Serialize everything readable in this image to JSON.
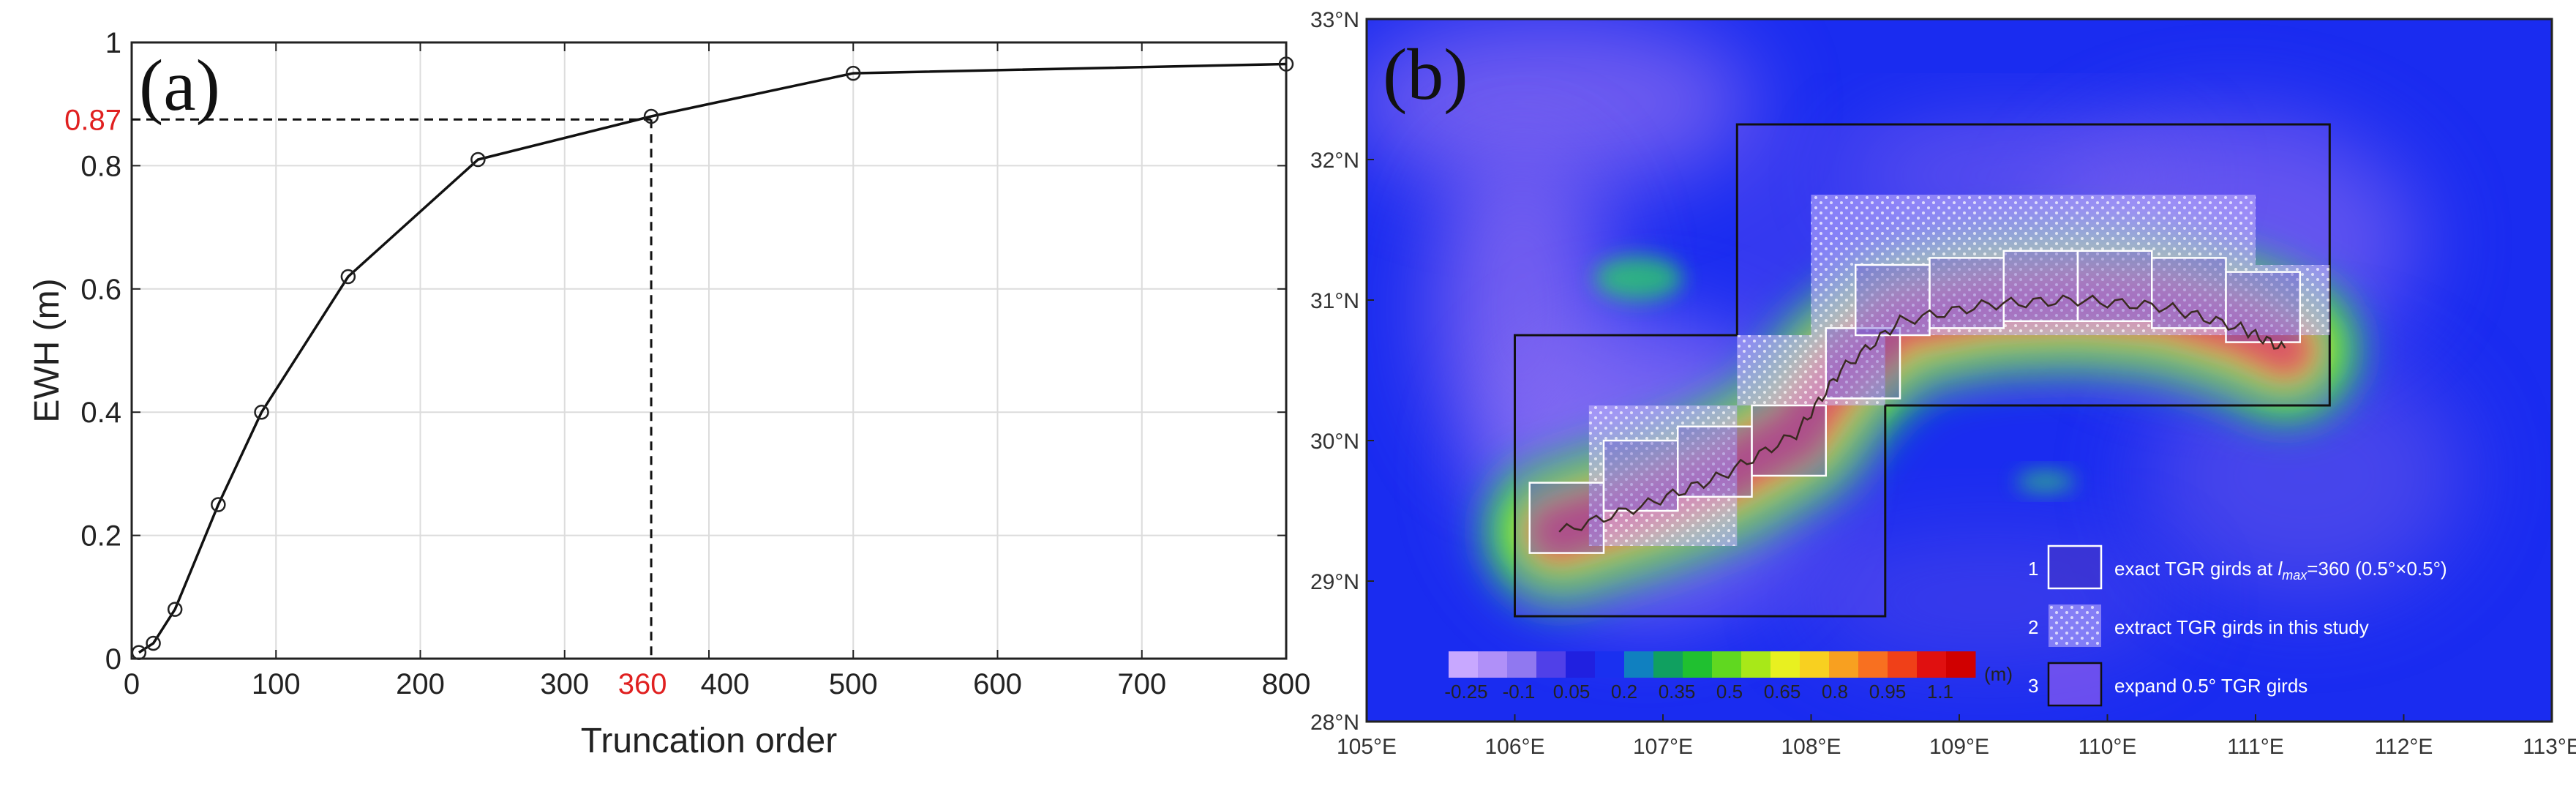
{
  "chart_data": [
    {
      "type": "line",
      "panel_label": "(a)",
      "xlabel": "Truncation order",
      "ylabel": "EWH (m)",
      "xlim": [
        0,
        800
      ],
      "ylim": [
        0,
        1
      ],
      "xticks": [
        "0",
        "100",
        "200",
        "300",
        "400",
        "500",
        "600",
        "700",
        "800"
      ],
      "yticks": [
        "0",
        "0.2",
        "0.4",
        "0.6",
        "0.8",
        "1"
      ],
      "grid": true,
      "series": [
        {
          "name": "EWH",
          "x": [
            5,
            15,
            30,
            60,
            90,
            150,
            240,
            360,
            500,
            800
          ],
          "y": [
            0.01,
            0.025,
            0.08,
            0.25,
            0.4,
            0.62,
            0.81,
            0.88,
            0.95,
            0.965
          ]
        }
      ],
      "highlight": {
        "x_label": "360",
        "y_label": "0.87",
        "x": 360,
        "y": 0.875,
        "color": "#e02020"
      }
    },
    {
      "type": "heatmap",
      "panel_label": "(b)",
      "lon_range": [
        105,
        113
      ],
      "lat_range": [
        28,
        33
      ],
      "xticks": [
        "105°E",
        "106°E",
        "107°E",
        "108°E",
        "109°E",
        "110°E",
        "111°E",
        "112°E",
        "113°E"
      ],
      "yticks": [
        "28°N",
        "29°N",
        "30°N",
        "31°N",
        "32°N",
        "33°N"
      ],
      "colorbar": {
        "labels": [
          "-0.25",
          "-0.1",
          "0.05",
          "0.2",
          "0.35",
          "0.5",
          "0.65",
          "0.8",
          "0.95",
          "1.1"
        ],
        "unit": "(m)",
        "min": -0.3,
        "max": 1.2
      },
      "legend": [
        {
          "number": "1",
          "text_pre": "exact TGR girds at ",
          "lmax_l": "l",
          "lmax_sub": "max",
          "text_post": "=360 (0.5°×0.5°)"
        },
        {
          "number": "2",
          "text": "extract TGR girds in this study"
        },
        {
          "number": "3",
          "text": "expand 0.5° TGR girds"
        }
      ],
      "expanded_region": {
        "lon_lat_outline": [
          [
            106,
            28.75
          ],
          [
            106,
            30.75
          ],
          [
            107.5,
            30.75
          ],
          [
            107.5,
            32.25
          ],
          [
            111.5,
            32.25
          ],
          [
            111.5,
            30.25
          ],
          [
            108.5,
            30.25
          ],
          [
            108.5,
            28.75
          ]
        ]
      },
      "extract_region": {
        "lon_lat_outline": [
          [
            106.5,
            29.25
          ],
          [
            106.5,
            30.25
          ],
          [
            107.5,
            30.25
          ],
          [
            107.5,
            30.75
          ],
          [
            108,
            30.75
          ],
          [
            108,
            31.75
          ],
          [
            111,
            31.75
          ],
          [
            111,
            31.25
          ],
          [
            111.5,
            31.25
          ],
          [
            111.5,
            30.75
          ],
          [
            108.5,
            30.75
          ],
          [
            108.5,
            30.25
          ],
          [
            107.5,
            30.25
          ],
          [
            107.5,
            29.25
          ]
        ]
      },
      "exact_cells_sw": [
        [
          106.1,
          29.2
        ],
        [
          106.6,
          29.5
        ],
        [
          107.1,
          29.6
        ],
        [
          107.6,
          29.75
        ],
        [
          108.1,
          30.3
        ],
        [
          108.3,
          30.75
        ],
        [
          108.8,
          30.8
        ],
        [
          109.3,
          30.85
        ],
        [
          109.8,
          30.85
        ],
        [
          110.3,
          30.8
        ],
        [
          110.8,
          30.7
        ]
      ],
      "anomaly_path": [
        [
          106.3,
          29.35
        ],
        [
          106.9,
          29.55
        ],
        [
          107.4,
          29.75
        ],
        [
          107.9,
          30.05
        ],
        [
          108.2,
          30.5
        ],
        [
          108.6,
          30.85
        ],
        [
          109.2,
          30.97
        ],
        [
          109.8,
          31.0
        ],
        [
          110.4,
          30.95
        ],
        [
          110.9,
          30.8
        ],
        [
          111.2,
          30.65
        ]
      ]
    }
  ]
}
